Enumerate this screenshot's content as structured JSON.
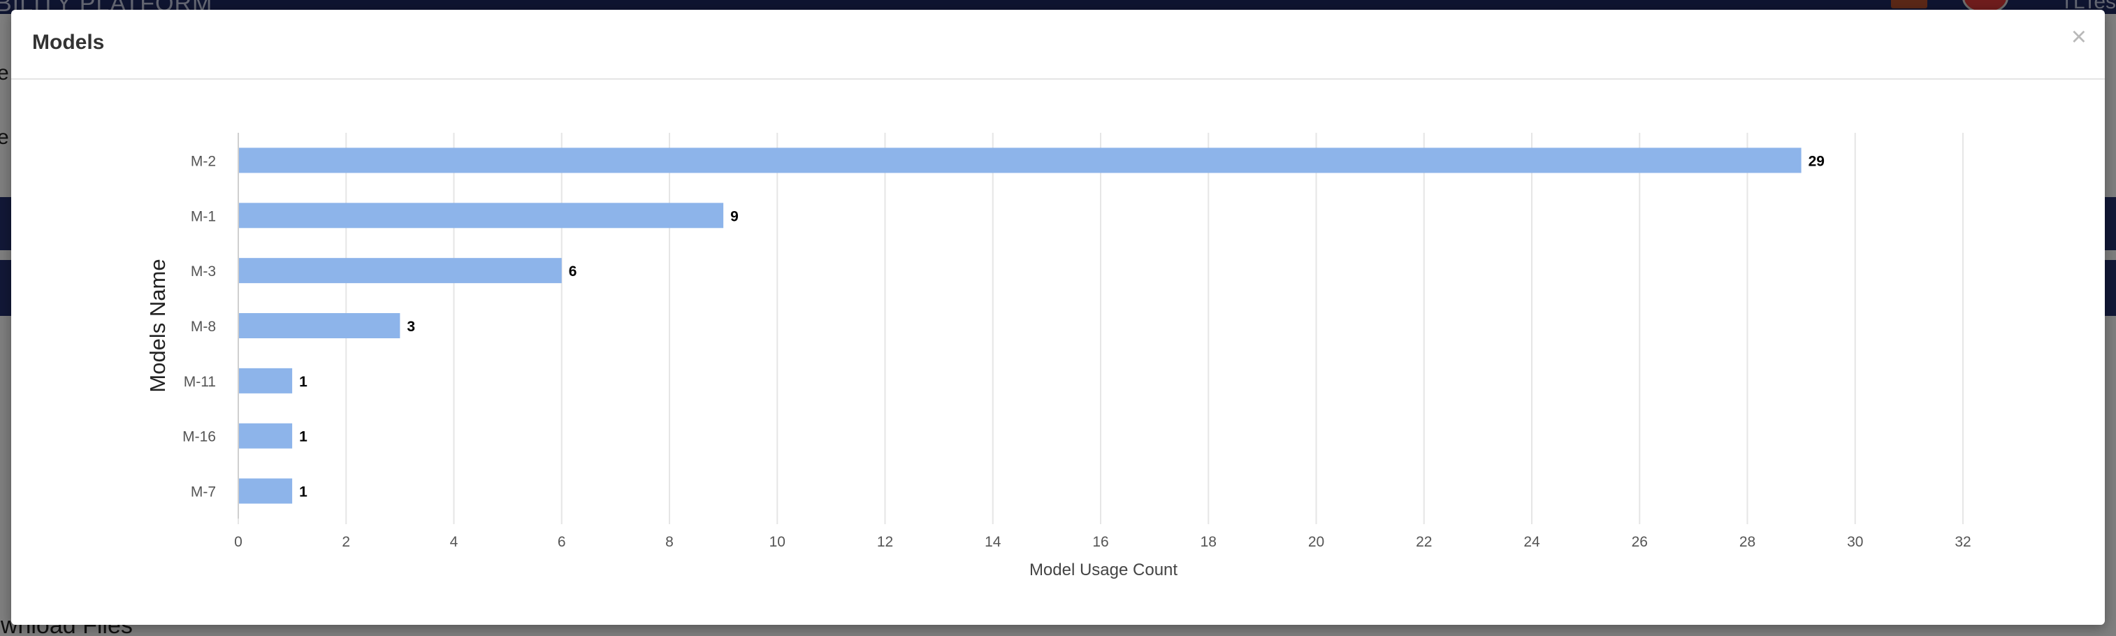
{
  "background": {
    "brand_fragment": "BILITY PLATFORM",
    "user_fragment": "TLTes",
    "letter_1": "e",
    "letter_2": "e",
    "download_fragment": "ownload Files"
  },
  "modal": {
    "title": "Models",
    "close_label": "×"
  },
  "colors": {
    "bar": "#8db4ea",
    "grid": "#e6e6e6",
    "overlay": "rgba(0,0,0,0.5)",
    "header_band": "#24306e"
  },
  "chart_data": {
    "type": "bar",
    "orientation": "horizontal",
    "categories": [
      "M-2",
      "M-1",
      "M-3",
      "M-8",
      "M-11",
      "M-16",
      "M-7"
    ],
    "values": [
      29,
      9,
      6,
      3,
      1,
      1,
      1
    ],
    "xlabel": "Model Usage Count",
    "ylabel": "Models Name",
    "xlim": [
      0,
      32
    ],
    "xticks": [
      0,
      2,
      4,
      6,
      8,
      10,
      12,
      14,
      16,
      18,
      20,
      22,
      24,
      26,
      28,
      30,
      32
    ],
    "grid": true,
    "data_labels": true
  }
}
